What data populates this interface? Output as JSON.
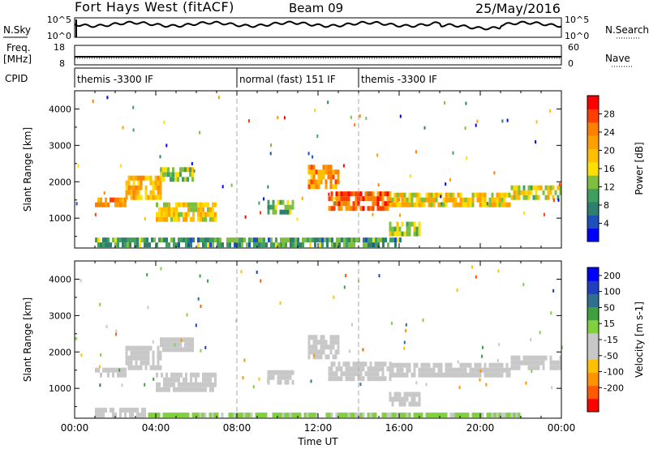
{
  "header": {
    "station": "Fort Hays West (fitACF)",
    "beam": "Beam 09",
    "date": "25/May/2016"
  },
  "strip_labels": {
    "nsky": "N.Sky",
    "nsky_ticks": [
      "10^5",
      "10^0"
    ],
    "nsearch": "N.Search",
    "nsearch_ticks": [
      "10^5",
      "10^0"
    ],
    "freq_line1": "Freq.",
    "freq_line2": "[MHz]",
    "freq_ticks": [
      "18",
      "8"
    ],
    "nave": "Nave",
    "nave_ticks": [
      "60",
      "0"
    ],
    "cpid": "CPID"
  },
  "cpid_segments": [
    {
      "label": "themis -3300 IF",
      "start_hour": 0.0
    },
    {
      "label": "normal (fast) 151 IF",
      "start_hour": 8.0
    },
    {
      "label": "themis -3300 IF",
      "start_hour": 14.0
    }
  ],
  "chart_data": [
    {
      "type": "heatmap",
      "panel": "power",
      "ylabel": "Slant Range [km]",
      "colorbar_label": "Power [dB]",
      "colorbar_ticks": [
        4,
        8,
        12,
        16,
        20,
        24,
        28
      ],
      "colorbar_range": [
        0,
        32
      ],
      "colorbar_colors": [
        "#0000ff",
        "#1f4fb8",
        "#2f7f6f",
        "#3f9f5f",
        "#7fbf3f",
        "#ffdf00",
        "#ffbf00",
        "#ff9f00",
        "#ff7f00",
        "#ff3f00",
        "#ff0000"
      ],
      "x_ticks": [
        "00:00",
        "04:00",
        "08:00",
        "12:00",
        "16:00",
        "20:00",
        "00:00"
      ],
      "xlim_hours": [
        0,
        24
      ],
      "y_ticks": [
        1000,
        2000,
        3000,
        4000
      ],
      "ylim": [
        180,
        4500
      ],
      "bands": [
        {
          "t0": 1.0,
          "t1": 2.5,
          "r0": 1300,
          "r1": 1500,
          "power": 24
        },
        {
          "t0": 2.5,
          "t1": 4.2,
          "r0": 1500,
          "r1": 2100,
          "power": 20
        },
        {
          "t0": 4.2,
          "t1": 5.8,
          "r0": 2000,
          "r1": 2400,
          "power": 14
        },
        {
          "t0": 4.0,
          "t1": 7.0,
          "r0": 900,
          "r1": 1400,
          "power": 18
        },
        {
          "t0": 9.5,
          "t1": 10.8,
          "r0": 1100,
          "r1": 1400,
          "power": 12
        },
        {
          "t0": 11.5,
          "t1": 13.0,
          "r0": 1800,
          "r1": 2400,
          "power": 22
        },
        {
          "t0": 12.5,
          "t1": 15.5,
          "r0": 1200,
          "r1": 1700,
          "power": 26
        },
        {
          "t0": 15.5,
          "t1": 21.5,
          "r0": 1300,
          "r1": 1650,
          "power": 18
        },
        {
          "t0": 21.5,
          "t1": 24.0,
          "r0": 1500,
          "r1": 1800,
          "power": 16
        },
        {
          "t0": 15.5,
          "t1": 17.0,
          "r0": 500,
          "r1": 800,
          "power": 14
        },
        {
          "t0": 1.0,
          "t1": 16.0,
          "r0": 200,
          "r1": 350,
          "power": 10
        }
      ]
    },
    {
      "type": "heatmap",
      "panel": "velocity",
      "ylabel": "Slant Range [km]",
      "colorbar_label": "Velocity [m s-1]",
      "colorbar_ticks": [
        -200,
        -100,
        -50,
        -15,
        15,
        50,
        100,
        200
      ],
      "colorbar_range": [
        -250,
        250
      ],
      "colorbar_colors": [
        "#ff0000",
        "#ff5a00",
        "#ff9400",
        "#ffc000",
        "#c8c8c8",
        "#c8c8c8",
        "#80d040",
        "#3fa03f",
        "#2f6f8f",
        "#1f3fbf",
        "#0000ff"
      ],
      "x_ticks": [
        "00:00",
        "04:00",
        "08:00",
        "12:00",
        "16:00",
        "20:00",
        "00:00"
      ],
      "xlim_hours": [
        0,
        24
      ],
      "y_ticks": [
        1000,
        2000,
        3000,
        4000
      ],
      "ylim": [
        180,
        4500
      ],
      "xlabel": "Time UT",
      "bands": [
        {
          "t0": 1.0,
          "t1": 2.5,
          "r0": 1300,
          "r1": 1500,
          "vel": 0
        },
        {
          "t0": 2.5,
          "t1": 4.2,
          "r0": 1500,
          "r1": 2100,
          "vel": 0
        },
        {
          "t0": 4.2,
          "t1": 5.8,
          "r0": 2000,
          "r1": 2400,
          "vel": 0
        },
        {
          "t0": 4.0,
          "t1": 7.0,
          "r0": 900,
          "r1": 1400,
          "vel": -35
        },
        {
          "t0": 9.5,
          "t1": 10.8,
          "r0": 1100,
          "r1": 1400,
          "vel": -35
        },
        {
          "t0": 11.5,
          "t1": 13.0,
          "r0": 1800,
          "r1": 2400,
          "vel": 0
        },
        {
          "t0": 12.5,
          "t1": 15.5,
          "r0": 1200,
          "r1": 1700,
          "vel": 0
        },
        {
          "t0": 15.5,
          "t1": 21.5,
          "r0": 1300,
          "r1": 1650,
          "vel": 0
        },
        {
          "t0": 21.5,
          "t1": 24.0,
          "r0": 1500,
          "r1": 1800,
          "vel": 0
        },
        {
          "t0": 15.5,
          "t1": 17.0,
          "r0": 500,
          "r1": 800,
          "vel": 0
        },
        {
          "t0": 1.0,
          "t1": 3.5,
          "r0": 200,
          "r1": 350,
          "vel": -35
        },
        {
          "t0": 3.5,
          "t1": 22.0,
          "r0": 200,
          "r1": 300,
          "vel": 30
        }
      ]
    }
  ],
  "xlabel": "Time UT"
}
